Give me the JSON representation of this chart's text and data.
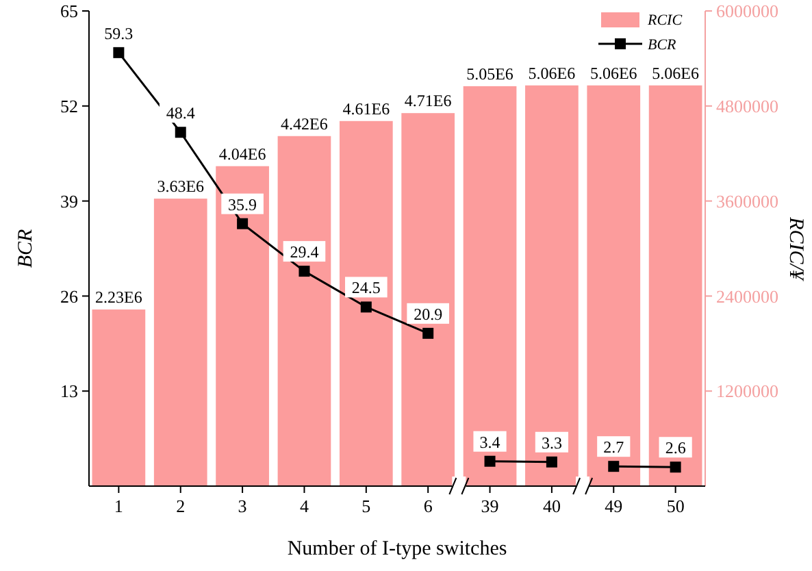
{
  "chart_data": {
    "type": "bar",
    "xlabel": "Number of I-type switches",
    "ylabel": "BCR",
    "y2label": "RCIC/¥",
    "categories": [
      "1",
      "2",
      "3",
      "4",
      "5",
      "6",
      "39",
      "40",
      "49",
      "50"
    ],
    "series": [
      {
        "name": "RCIC",
        "axis": "y2",
        "color": "#fc9c9c",
        "values": [
          2230000,
          3630000,
          4040000,
          4420000,
          4610000,
          4710000,
          5050000,
          5060000,
          5060000,
          5060000
        ],
        "value_labels": [
          "2.23E6",
          "3.63E6",
          "4.04E6",
          "4.42E6",
          "4.61E6",
          "4.71E6",
          "5.05E6",
          "5.06E6",
          "5.06E6",
          "5.06E6"
        ]
      },
      {
        "name": "BCR",
        "type": "line",
        "axis": "y",
        "color": "#000000",
        "marker": "square",
        "values": [
          59.3,
          48.4,
          35.9,
          29.4,
          24.5,
          20.9,
          3.4,
          3.3,
          2.7,
          2.6
        ],
        "value_labels": [
          "59.3",
          "48.4",
          "35.9",
          "29.4",
          "24.5",
          "20.9",
          "3.4",
          "3.3",
          "2.7",
          "2.6"
        ]
      }
    ],
    "ylim": [
      0,
      65
    ],
    "yticks": [
      13,
      26,
      39,
      52,
      65
    ],
    "y2lim": [
      0,
      6000000
    ],
    "y2ticks": [
      1200000,
      2400000,
      3600000,
      4800000,
      6000000
    ],
    "legend": "top right",
    "grid": false
  }
}
